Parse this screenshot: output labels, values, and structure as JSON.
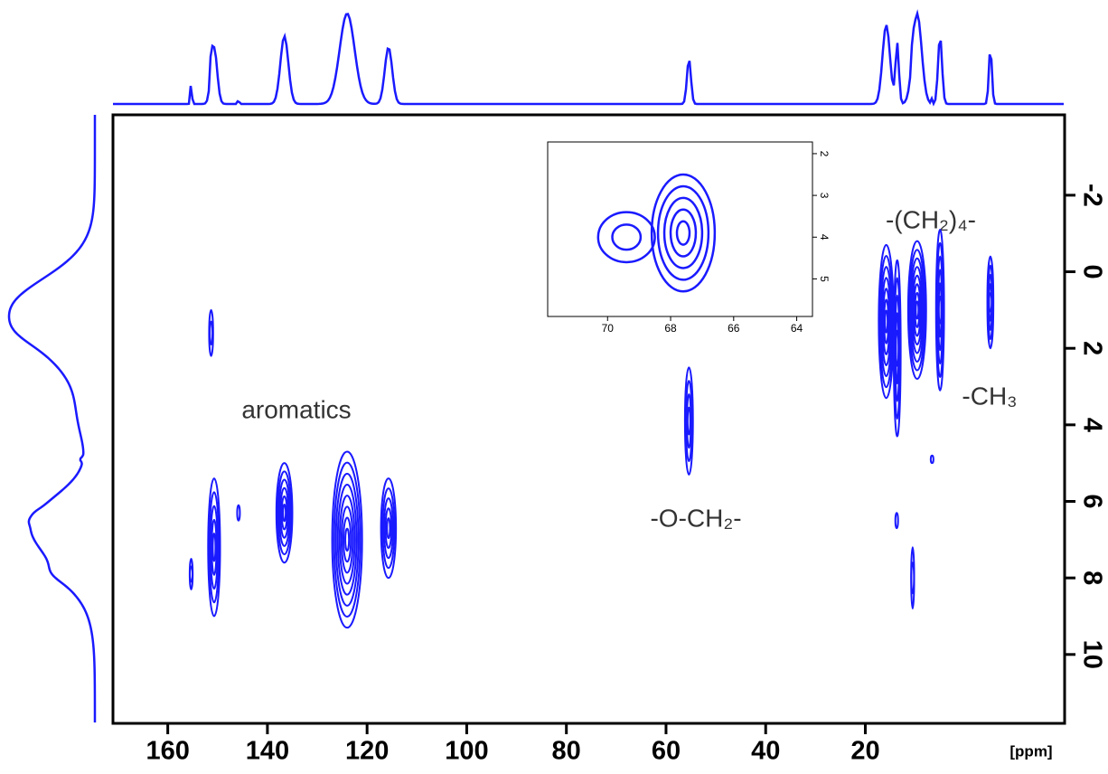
{
  "chart_data": {
    "type": "contour",
    "x_unit": "[ppm]",
    "xlim": [
      171,
      -20
    ],
    "xticks": [
      160,
      140,
      120,
      100,
      80,
      60,
      40,
      20
    ],
    "ylim": [
      -4.1,
      11.8
    ],
    "yticks": [
      -2,
      0,
      2,
      4,
      6,
      8,
      10
    ],
    "color": "#1a1aff",
    "annotations": [
      "aromatics",
      "-O-CH₂-",
      "-(CH₂)₄-",
      "-CH₃"
    ],
    "peaks": [
      {
        "x": 151.3,
        "y": 1.6,
        "dx": 0.4,
        "dy": 0.6,
        "levels": 2
      },
      {
        "x": 155.3,
        "y": 7.9,
        "dx": 0.3,
        "dy": 0.4,
        "levels": 2
      },
      {
        "x": 150.7,
        "y": 7.2,
        "dx": 1.2,
        "dy": 1.8,
        "levels": 5
      },
      {
        "x": 145.8,
        "y": 6.3,
        "dx": 0.2,
        "dy": 0.2,
        "levels": 1
      },
      {
        "x": 136.6,
        "y": 6.3,
        "dx": 1.6,
        "dy": 1.3,
        "levels": 6
      },
      {
        "x": 124.0,
        "y": 7.0,
        "dx": 3.0,
        "dy": 2.3,
        "levels": 8
      },
      {
        "x": 115.7,
        "y": 6.7,
        "dx": 1.5,
        "dy": 1.3,
        "levels": 5
      },
      {
        "x": 55.4,
        "y": 3.9,
        "dx": 0.8,
        "dy": 1.4,
        "levels": 4
      },
      {
        "x": 15.8,
        "y": 1.3,
        "dx": 1.5,
        "dy": 2.0,
        "levels": 7
      },
      {
        "x": 13.6,
        "y": 2.0,
        "dx": 0.7,
        "dy": 2.3,
        "levels": 5
      },
      {
        "x": 9.6,
        "y": 1.0,
        "dx": 1.8,
        "dy": 1.8,
        "levels": 8
      },
      {
        "x": 5.0,
        "y": 1.0,
        "dx": 0.8,
        "dy": 2.1,
        "levels": 6
      },
      {
        "x": -5.1,
        "y": 0.8,
        "dx": 0.6,
        "dy": 1.2,
        "levels": 5
      },
      {
        "x": 13.7,
        "y": 6.5,
        "dx": 0.2,
        "dy": 0.2,
        "levels": 1
      },
      {
        "x": 10.5,
        "y": 8.0,
        "dx": 0.3,
        "dy": 0.8,
        "levels": 2
      },
      {
        "x": 6.6,
        "y": 4.9,
        "dx": 0.1,
        "dy": 0.1,
        "levels": 1
      }
    ],
    "inset": {
      "xlim": [
        71.9,
        63.5
      ],
      "xticks": [
        70,
        68,
        66,
        64
      ],
      "ylim": [
        1.72,
        5.9
      ],
      "yticks": [
        2,
        3,
        4,
        5
      ],
      "peaks": [
        {
          "x": 67.6,
          "y": 3.9,
          "dx": 1.0,
          "dy": 1.4,
          "levels": 5
        },
        {
          "x": 69.4,
          "y": 4.0,
          "dx": 0.9,
          "dy": 0.6,
          "levels": 2
        }
      ]
    }
  }
}
